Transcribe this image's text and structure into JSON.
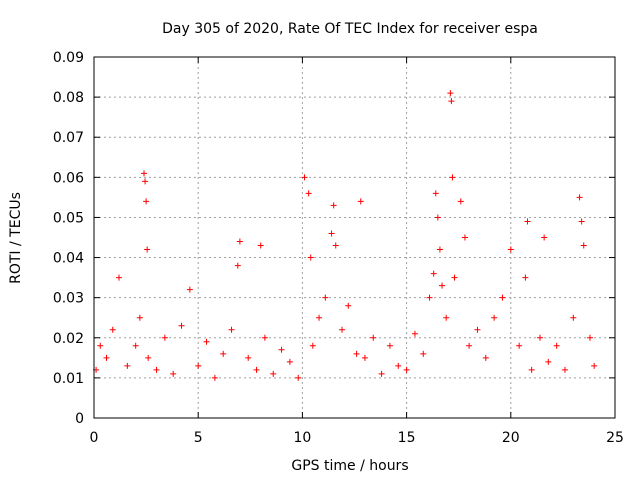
{
  "chart_data": {
    "type": "scatter",
    "title": "Day 305 of 2020, Rate Of TEC Index for receiver espa",
    "xlabel": "GPS time / hours",
    "ylabel": "ROTI / TECUs",
    "xlim": [
      0,
      25
    ],
    "ylim": [
      0,
      0.09
    ],
    "x_ticks": [
      0,
      5,
      10,
      15,
      20,
      25
    ],
    "y_ticks": [
      0,
      0.01,
      0.02,
      0.03,
      0.04,
      0.05,
      0.06,
      0.07,
      0.08,
      0.09
    ],
    "x_tick_labels": [
      "0",
      "5",
      "10",
      "15",
      "20",
      "25"
    ],
    "y_tick_labels": [
      "0",
      "0.01",
      "0.02",
      "0.03",
      "0.04",
      "0.05",
      "0.06",
      "0.07",
      "0.08",
      "0.09"
    ],
    "grid": true,
    "marker": "+",
    "color": "#ff0000",
    "series": [
      {
        "x": [
          0.1,
          0.3,
          0.6,
          0.9,
          1.2,
          1.6,
          2.0,
          2.2,
          2.4,
          2.45,
          2.5,
          2.55,
          2.6,
          3.0,
          3.4,
          3.8,
          4.2,
          4.6,
          5.0,
          5.4,
          5.8,
          6.2,
          6.6,
          6.9,
          7.0,
          7.4,
          7.8,
          8.0,
          8.2,
          8.6,
          9.0,
          9.4,
          9.8,
          10.1,
          10.3,
          10.4,
          10.5,
          10.8,
          11.1,
          11.4,
          11.5,
          11.6,
          11.9,
          12.2,
          12.6,
          12.8,
          13.0,
          13.4,
          13.8,
          14.2,
          14.6,
          15.0,
          15.4,
          15.8,
          16.1,
          16.3,
          16.4,
          16.5,
          16.6,
          16.7,
          16.9,
          17.1,
          17.15,
          17.2,
          17.3,
          17.6,
          17.8,
          18.0,
          18.4,
          18.8,
          19.2,
          19.6,
          20.0,
          20.4,
          20.7,
          20.8,
          21.0,
          21.4,
          21.6,
          21.8,
          22.2,
          22.6,
          23.0,
          23.3,
          23.4,
          23.5,
          23.8,
          24.0
        ],
        "y": [
          0.012,
          0.018,
          0.015,
          0.022,
          0.035,
          0.013,
          0.018,
          0.025,
          0.061,
          0.059,
          0.054,
          0.042,
          0.015,
          0.012,
          0.02,
          0.011,
          0.023,
          0.032,
          0.013,
          0.019,
          0.01,
          0.016,
          0.022,
          0.038,
          0.044,
          0.015,
          0.012,
          0.043,
          0.02,
          0.011,
          0.017,
          0.014,
          0.01,
          0.06,
          0.056,
          0.04,
          0.018,
          0.025,
          0.03,
          0.046,
          0.053,
          0.043,
          0.022,
          0.028,
          0.016,
          0.054,
          0.015,
          0.02,
          0.011,
          0.018,
          0.013,
          0.012,
          0.021,
          0.016,
          0.03,
          0.036,
          0.056,
          0.05,
          0.042,
          0.033,
          0.025,
          0.081,
          0.079,
          0.06,
          0.035,
          0.054,
          0.045,
          0.018,
          0.022,
          0.015,
          0.025,
          0.03,
          0.042,
          0.018,
          0.035,
          0.049,
          0.012,
          0.02,
          0.045,
          0.014,
          0.018,
          0.012,
          0.025,
          0.055,
          0.049,
          0.043,
          0.02,
          0.013
        ]
      }
    ]
  }
}
